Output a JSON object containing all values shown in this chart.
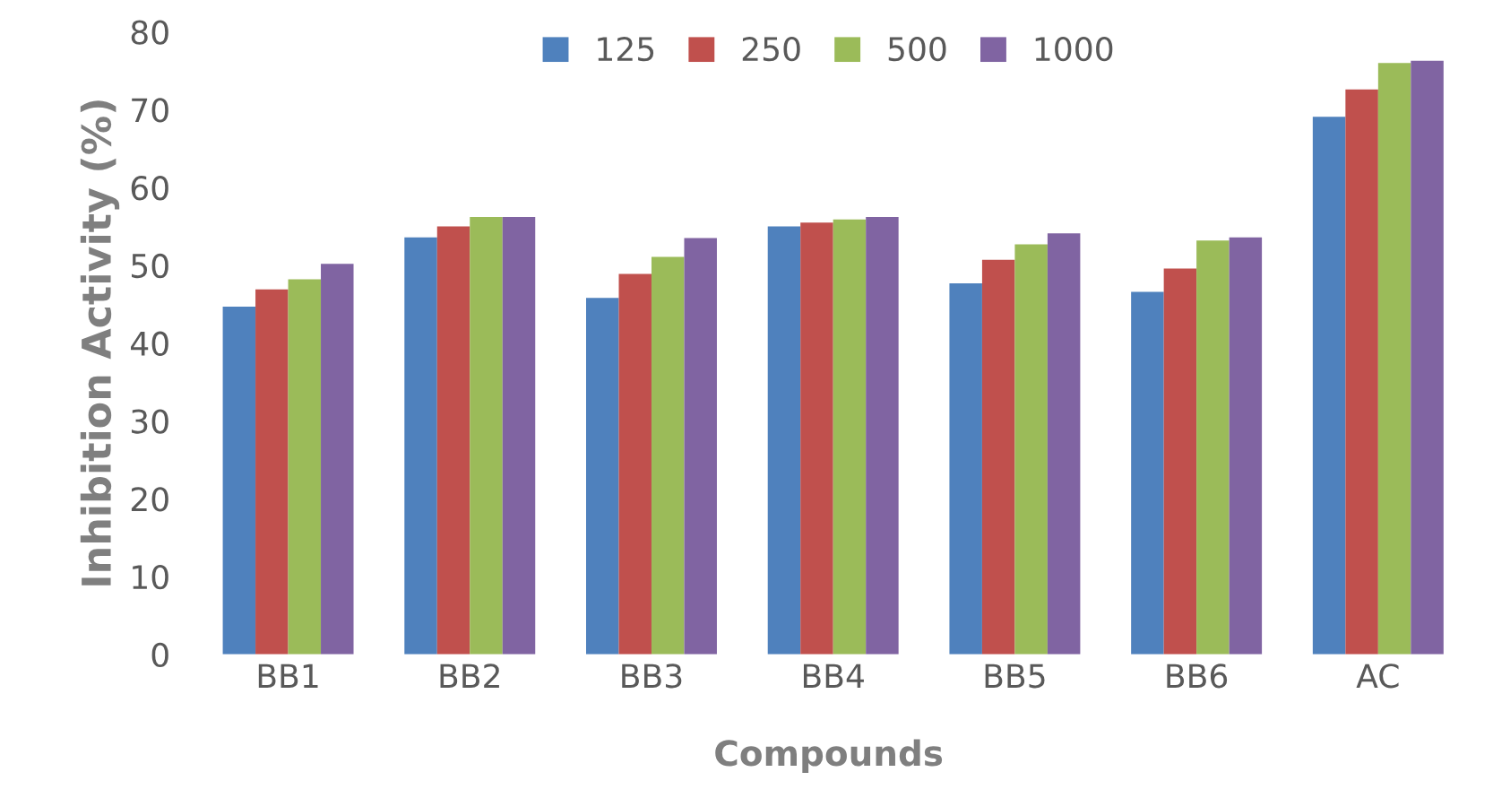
{
  "chart_data": {
    "type": "bar",
    "xlabel": "Compounds",
    "ylabel": "Inhibition Activity (%)",
    "categories": [
      "BB1",
      "BB2",
      "BB3",
      "BB4",
      "BB5",
      "BB6",
      "AC"
    ],
    "series": [
      {
        "name": "125",
        "color": "#4f81bd",
        "values": [
          44.7,
          53.6,
          45.8,
          55.0,
          47.7,
          46.6,
          69.1
        ]
      },
      {
        "name": "250",
        "color": "#c0504d",
        "values": [
          46.9,
          55.0,
          48.9,
          55.5,
          50.7,
          49.6,
          72.6
        ]
      },
      {
        "name": "500",
        "color": "#9bbb59",
        "values": [
          48.2,
          56.2,
          51.1,
          55.9,
          52.7,
          53.2,
          76.0
        ]
      },
      {
        "name": "1000",
        "color": "#8064a2",
        "values": [
          50.2,
          56.2,
          53.5,
          56.2,
          54.1,
          53.6,
          76.3
        ]
      }
    ],
    "ylim": [
      0,
      80
    ],
    "yticks": [
      0,
      10,
      20,
      30,
      40,
      50,
      60,
      70,
      80
    ],
    "grid": false,
    "legend": "top"
  }
}
